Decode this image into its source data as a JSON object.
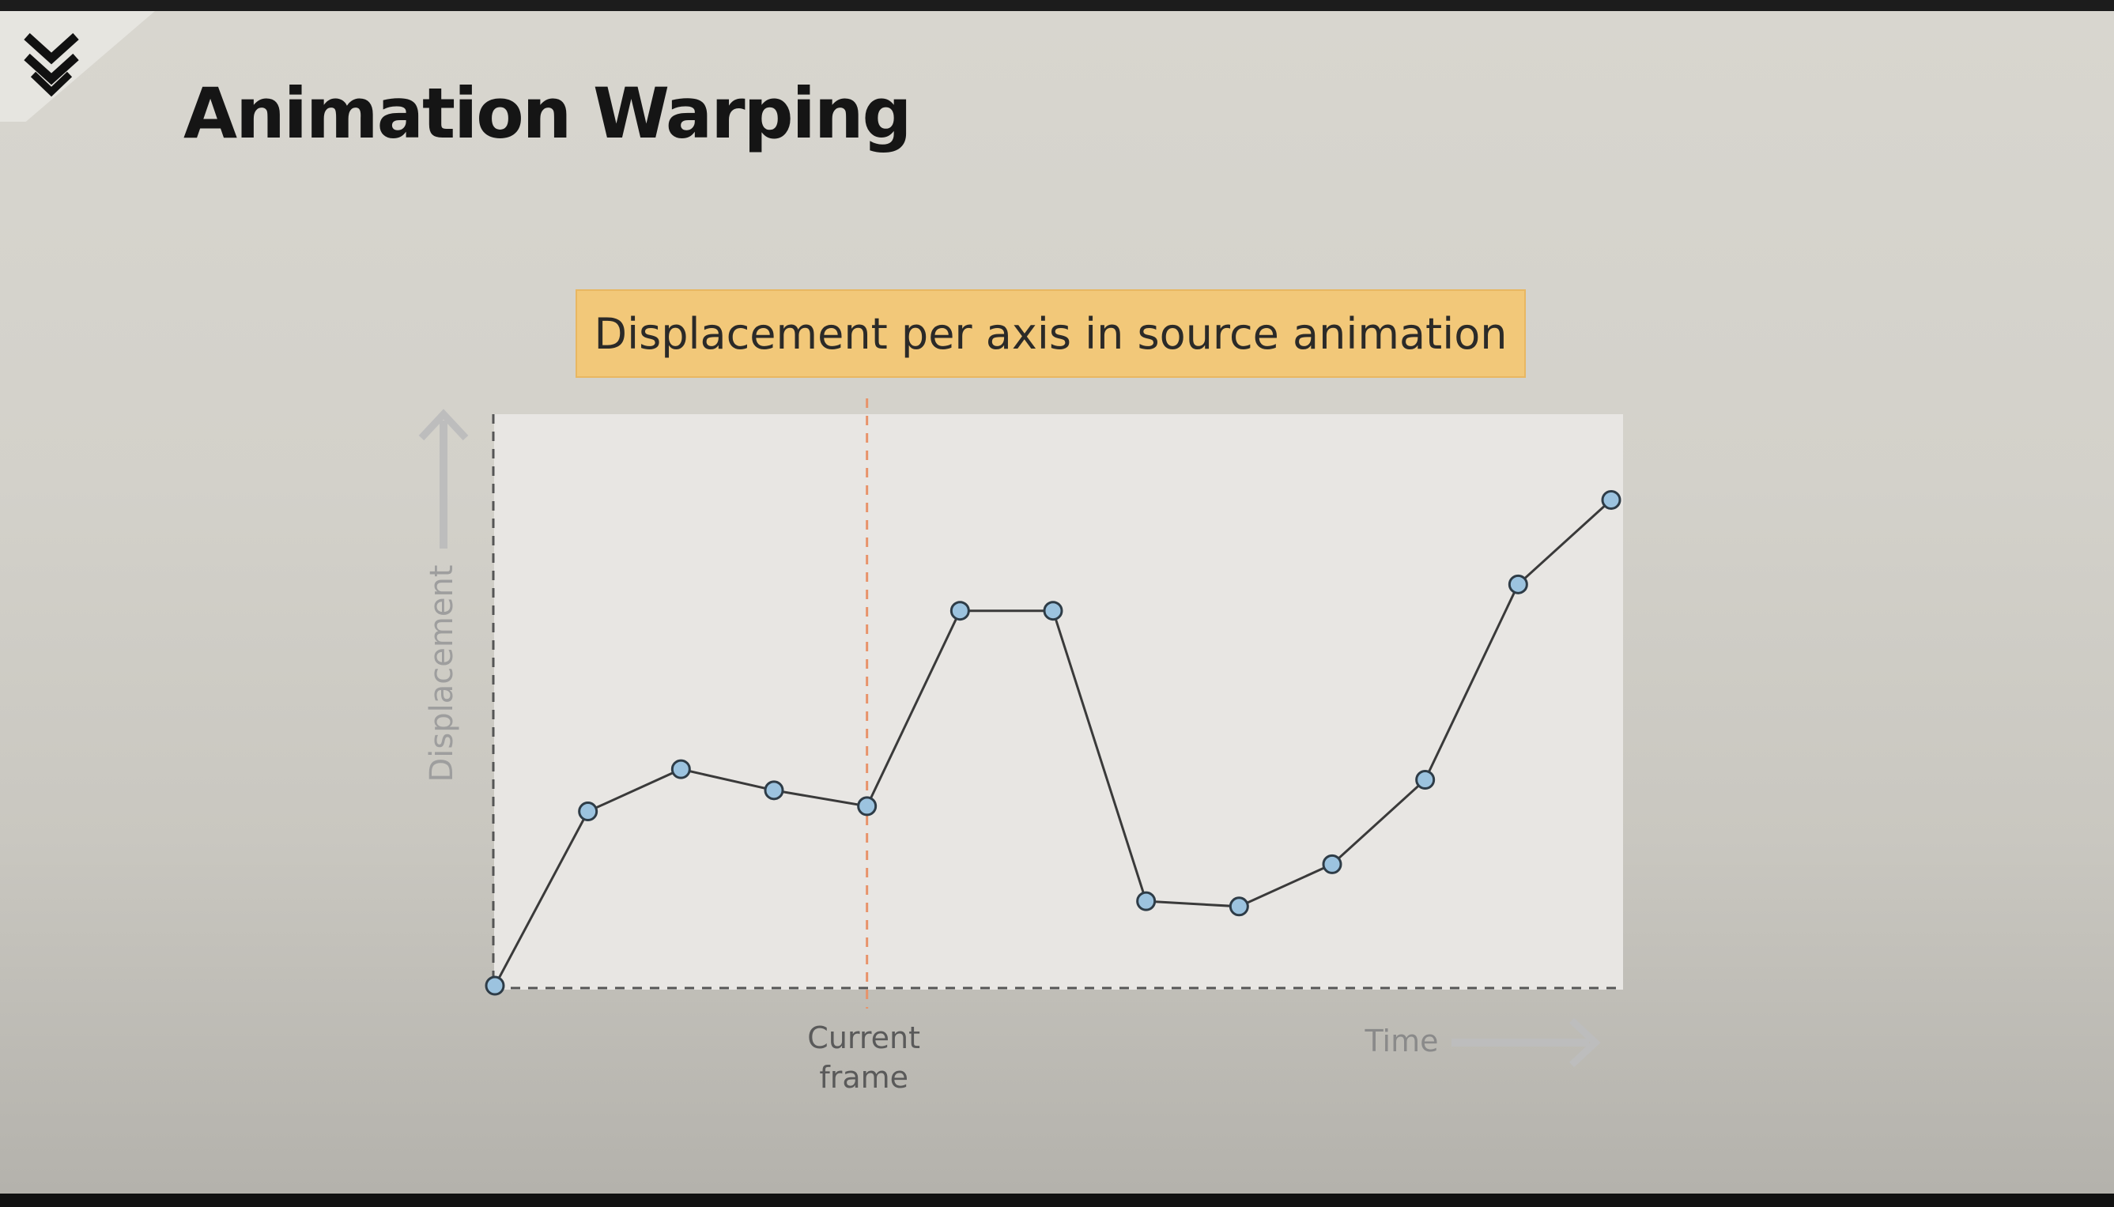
{
  "slide": {
    "title": "Animation Warping",
    "logo_icon": "chevron-stack-logo-icon"
  },
  "colors": {
    "banner_bg": "#f2c879",
    "point_fill": "#9cc3df",
    "line": "#3a3a3a",
    "current_frame_line": "#e8936a",
    "axis_arrow": "#bdbdbd"
  },
  "chart_data": {
    "type": "line",
    "title": "Displacement per axis in source animation",
    "xlabel": "Time",
    "ylabel": "Displacement",
    "grid": false,
    "legend": "none",
    "xlim": [
      0,
      12
    ],
    "ylim": [
      0,
      1
    ],
    "series": [
      {
        "x": [
          0,
          1,
          2,
          3,
          4,
          5,
          6,
          7,
          8,
          9,
          10,
          11,
          12
        ],
        "values": [
          0.0,
          0.33,
          0.41,
          0.37,
          0.34,
          0.71,
          0.71,
          0.16,
          0.15,
          0.23,
          0.39,
          0.76,
          0.92
        ]
      }
    ],
    "annotations": [
      {
        "x": 4,
        "label_line1": "Current",
        "label_line2": "frame"
      }
    ]
  }
}
